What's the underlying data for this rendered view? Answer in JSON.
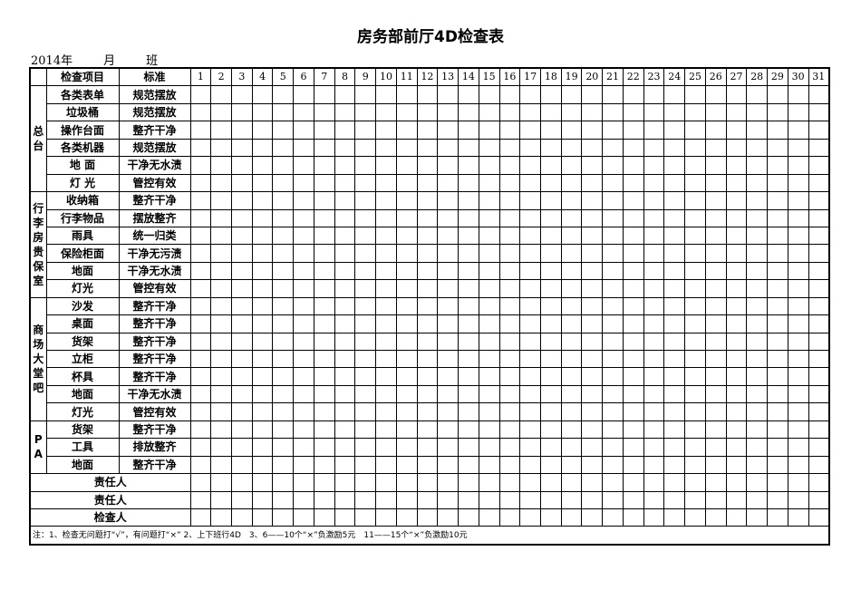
{
  "title": "房务部前厅4D检查表",
  "subline": {
    "year": "2014年",
    "month": "月",
    "shift": "班"
  },
  "header": {
    "item": "检查项目",
    "standard": "标准",
    "days": [
      "1",
      "2",
      "3",
      "4",
      "5",
      "6",
      "7",
      "8",
      "9",
      "10",
      "11",
      "12",
      "13",
      "14",
      "15",
      "16",
      "17",
      "18",
      "19",
      "20",
      "21",
      "22",
      "23",
      "24",
      "25",
      "26",
      "27",
      "28",
      "29",
      "30",
      "31"
    ]
  },
  "groups": [
    {
      "name": "总台",
      "items": [
        {
          "item": "各类表单",
          "standard": "规范摆放"
        },
        {
          "item": "垃圾桶",
          "standard": "规范摆放"
        },
        {
          "item": "操作台面",
          "standard": "整齐干净"
        },
        {
          "item": "各类机器",
          "standard": "规范摆放"
        },
        {
          "item": "地 面",
          "standard": "干净无水渍"
        },
        {
          "item": "灯 光",
          "standard": "管控有效"
        }
      ]
    },
    {
      "name": "行李房贵保室",
      "items": [
        {
          "item": "收纳箱",
          "standard": "整齐干净"
        },
        {
          "item": "行李物品",
          "standard": "摆放整齐"
        },
        {
          "item": "雨具",
          "standard": "统一归类"
        },
        {
          "item": "保险柜面",
          "standard": "干净无污渍"
        },
        {
          "item": "地面",
          "standard": "干净无水渍"
        },
        {
          "item": "灯光",
          "standard": "管控有效"
        }
      ]
    },
    {
      "name": "商场大堂吧",
      "items": [
        {
          "item": "沙发",
          "standard": "整齐干净"
        },
        {
          "item": "桌面",
          "standard": "整齐干净"
        },
        {
          "item": "货架",
          "standard": "整齐干净"
        },
        {
          "item": "立柜",
          "standard": "整齐干净"
        },
        {
          "item": "杯具",
          "standard": "整齐干净"
        },
        {
          "item": "地面",
          "standard": "干净无水渍"
        },
        {
          "item": "灯光",
          "standard": "管控有效"
        }
      ]
    },
    {
      "name": "PA",
      "items": [
        {
          "item": "货架",
          "standard": "整齐干净"
        },
        {
          "item": "工具",
          "standard": "排放整齐"
        },
        {
          "item": "地面",
          "standard": "整齐干净"
        }
      ]
    }
  ],
  "signoff": [
    "责任人",
    "责任人",
    "检查人"
  ],
  "note": "注：1、检查无问题打“√”，有问题打“×” 2、上下班行4D　3、6——10个“×”负激励5元　11——15个“×”负激励10元"
}
